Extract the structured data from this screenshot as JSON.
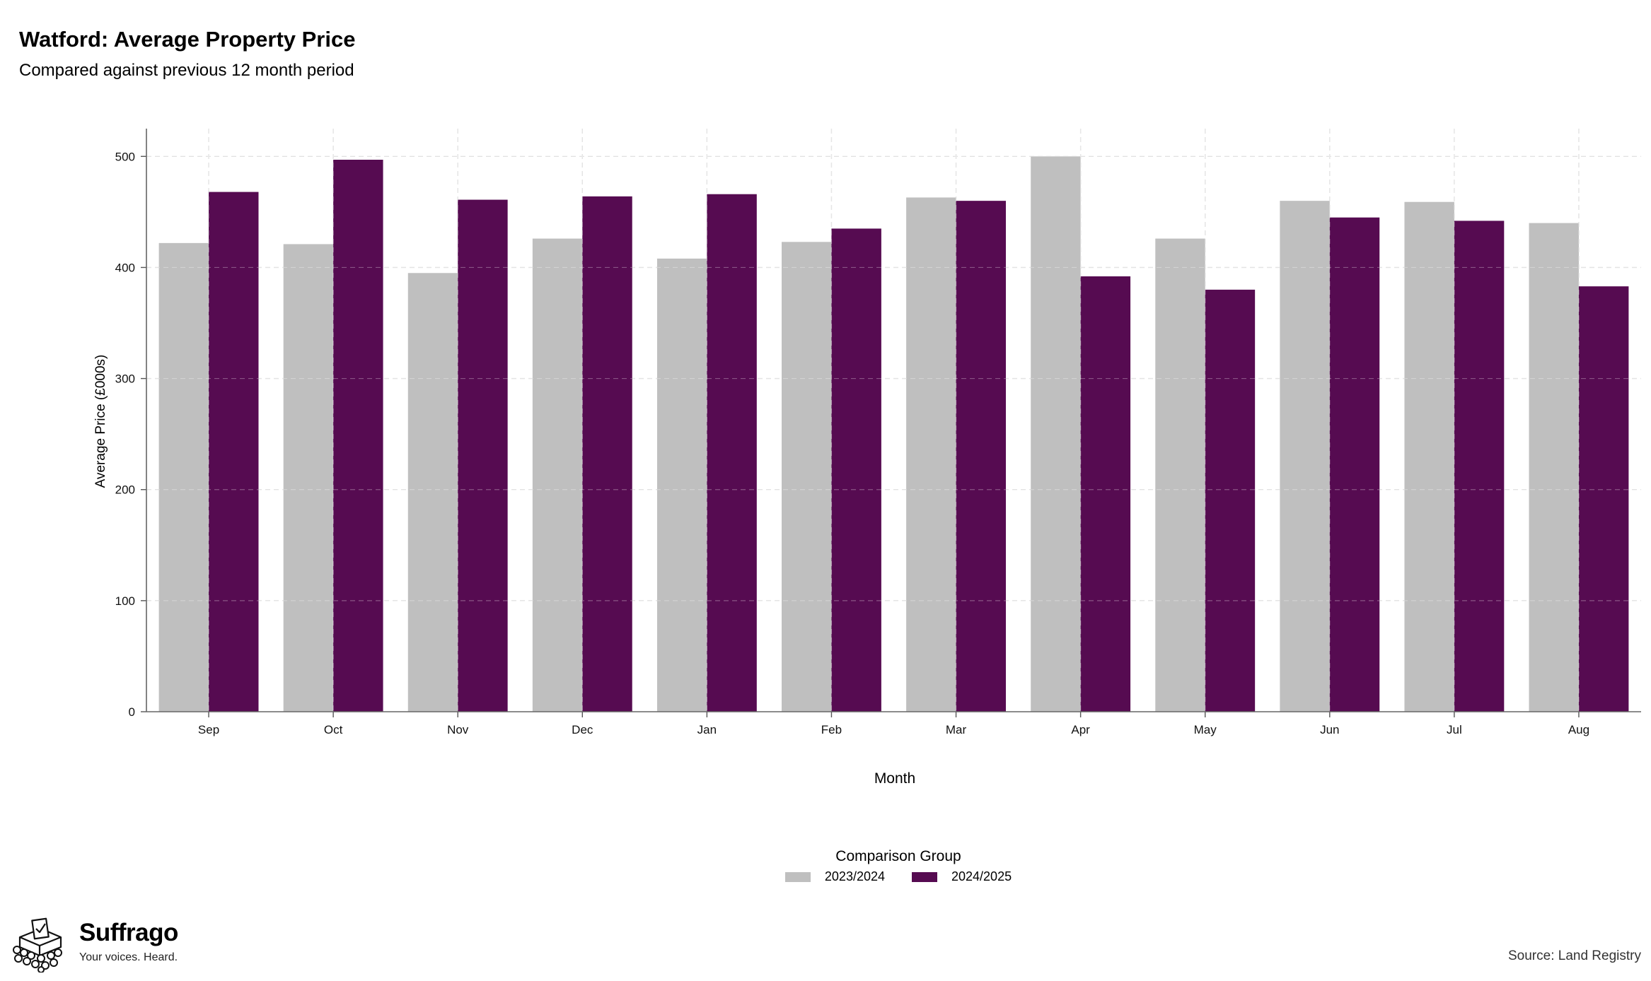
{
  "header": {
    "title": "Watford: Average Property Price",
    "subtitle": "Compared against previous 12 month period"
  },
  "legend": {
    "title": "Comparison Group",
    "items": [
      {
        "label": "2023/2024",
        "color": "#bfbfbf"
      },
      {
        "label": "2024/2025",
        "color": "#560b51"
      }
    ]
  },
  "footer": {
    "brand": "Suffrago",
    "tagline": "Your voices. Heard.",
    "source": "Source: Land Registry",
    "logo_icon": "ballot-box-crowd-icon"
  },
  "chart_data": {
    "type": "bar",
    "categories": [
      "Sep",
      "Oct",
      "Nov",
      "Dec",
      "Jan",
      "Feb",
      "Mar",
      "Apr",
      "May",
      "Jun",
      "Jul",
      "Aug"
    ],
    "series": [
      {
        "name": "2023/2024",
        "color": "#bfbfbf",
        "values": [
          422,
          421,
          395,
          426,
          408,
          423,
          463,
          500,
          426,
          460,
          459,
          440
        ]
      },
      {
        "name": "2024/2025",
        "color": "#560b51",
        "values": [
          468,
          497,
          461,
          464,
          466,
          435,
          460,
          392,
          380,
          445,
          442,
          383
        ]
      }
    ],
    "xlabel": "Month",
    "ylabel": "Average Price (£000s)",
    "ylim": [
      0,
      525
    ],
    "yticks": [
      0,
      100,
      200,
      300,
      400,
      500
    ],
    "grid": true,
    "legend_position": "bottom"
  }
}
